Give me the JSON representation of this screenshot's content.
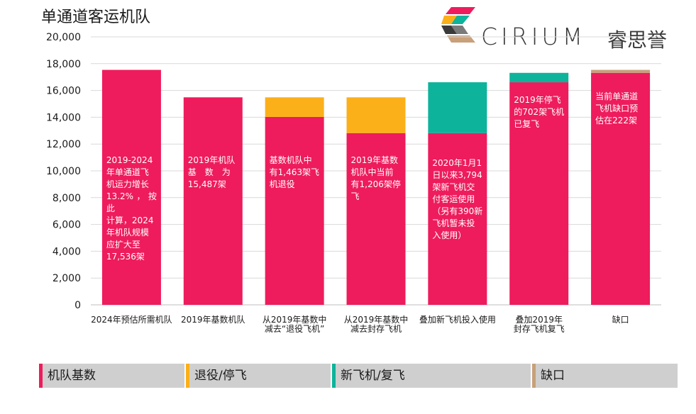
{
  "title": "单通道客运机队",
  "logo": {
    "text": "CIRIUM",
    "cn_text": "睿思誉"
  },
  "colors": {
    "base": "#EE1C5C",
    "retired": "#FBB01A",
    "new": "#0EB39B",
    "gap": "#C8A07A",
    "grid": "#d9d9d9",
    "legend_bg": "#cfcfcf"
  },
  "chart_data": {
    "type": "bar",
    "stacked": true,
    "title": "单通道客运机队",
    "ylim": [
      0,
      20000
    ],
    "yticks": [
      "20,000",
      "18,000",
      "16,000",
      "14,000",
      "12,000",
      "10,000",
      "8,000",
      "6,000",
      "4,000",
      "2,000",
      "0"
    ],
    "ytick_values": [
      20000,
      18000,
      16000,
      14000,
      12000,
      10000,
      8000,
      6000,
      4000,
      2000,
      0
    ],
    "grid": true,
    "categories": [
      [
        "2024年预估所需机队"
      ],
      [
        "2019年基数机队"
      ],
      [
        "从2019年基数中",
        "减去“退役飞机”"
      ],
      [
        "从2019年基数中",
        "减去封存飞机"
      ],
      [
        "叠加新飞机投入使用"
      ],
      [
        "叠加2019年",
        "封存飞机复飞"
      ],
      [
        "缺口"
      ]
    ],
    "series": [
      {
        "name": "机队基数",
        "color": "#EE1C5C",
        "values": [
          17536,
          15487,
          14024,
          12818,
          12818,
          16612,
          17314
        ]
      },
      {
        "name": "退役/停飞",
        "color": "#FBB01A",
        "values": [
          0,
          0,
          1463,
          2669,
          0,
          0,
          0
        ]
      },
      {
        "name": "新飞机/复飞",
        "color": "#0EB39B",
        "values": [
          0,
          0,
          0,
          0,
          3794,
          702,
          0
        ]
      },
      {
        "name": "缺口",
        "color": "#C8A07A",
        "values": [
          0,
          0,
          0,
          0,
          0,
          0,
          222
        ]
      }
    ],
    "annotations": [
      [
        "2019-2024",
        "年单通道飞",
        "机运力增长",
        "13.2%，按此",
        "计算，2024",
        "年机队规模",
        "应扩大至",
        "17,536架"
      ],
      [
        "2019年机队",
        "基　数　为",
        "15,487架"
      ],
      [
        "基数机队中",
        "有1,463架飞",
        "机退役"
      ],
      [
        "2019年基数",
        "机队中当前",
        "有1,206架停",
        "飞"
      ],
      [
        "2020年1月1",
        "日以来3,794",
        "架新飞机交",
        "付客运使用",
        "（另有390新",
        "飞机暂未投",
        "入使用）"
      ],
      [
        "2019年停飞",
        "的702架飞机",
        "已复飞"
      ],
      [
        "当前单通道",
        "飞机缺口预",
        "估在222架"
      ]
    ]
  },
  "legend": [
    {
      "label": "机队基数",
      "color": "#EE1C5C"
    },
    {
      "label": "退役/停飞",
      "color": "#FBB01A"
    },
    {
      "label": "新飞机/复飞",
      "color": "#0EB39B"
    },
    {
      "label": "缺口",
      "color": "#C8A07A"
    }
  ]
}
